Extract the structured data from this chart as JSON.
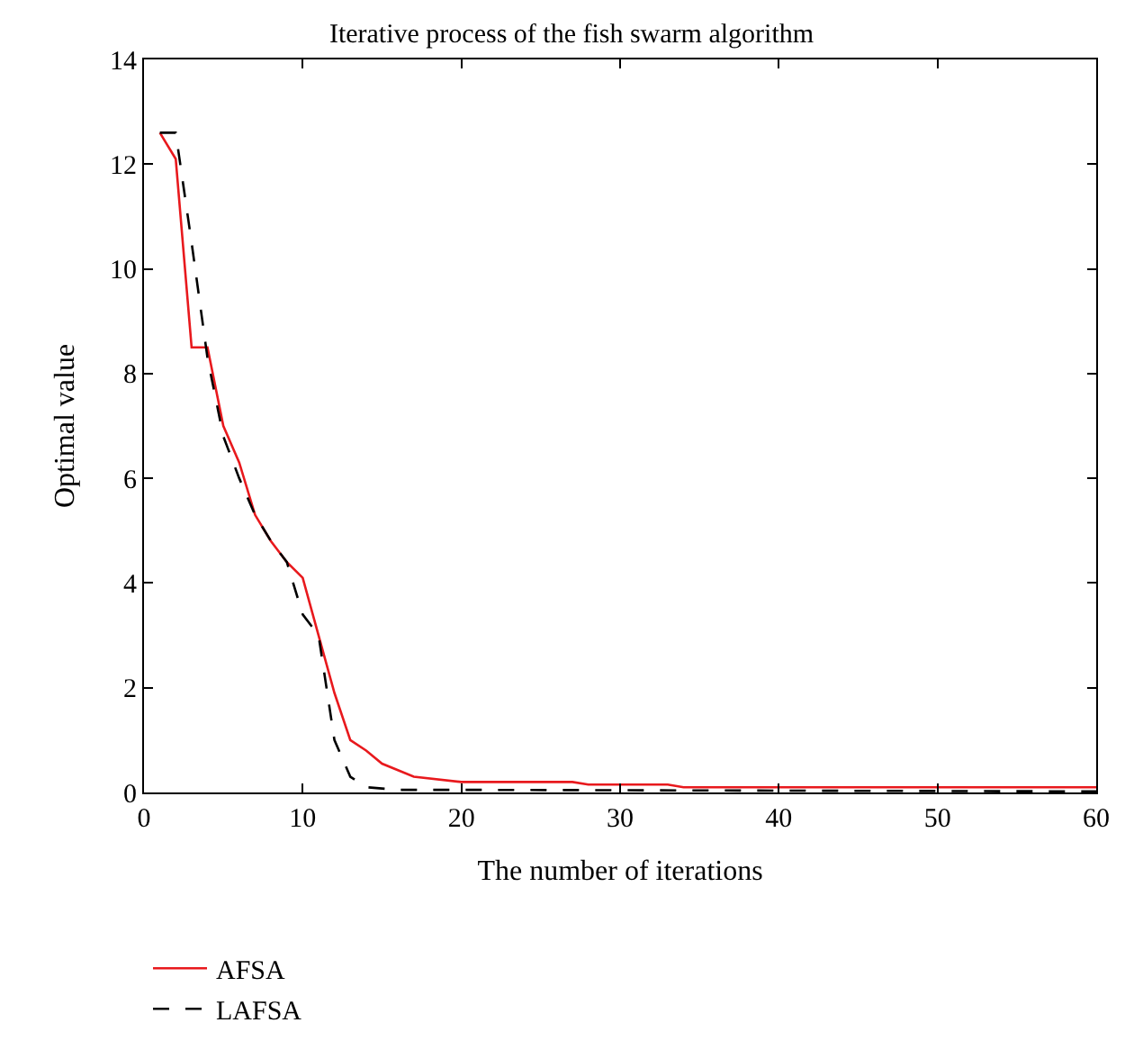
{
  "chart_data": {
    "type": "line",
    "title": "Iterative process of the fish swarm algorithm",
    "xlabel": "The number of iterations",
    "ylabel": "Optimal value",
    "xlim": [
      0,
      60
    ],
    "xticks": [
      0,
      10,
      20,
      30,
      40,
      50,
      60
    ],
    "ylim": [
      0,
      14
    ],
    "yticks": [
      0,
      2,
      4,
      6,
      8,
      10,
      12,
      14
    ],
    "legend": "bottom left",
    "marker": "none",
    "series": [
      {
        "name": "AFSA",
        "color": "#e8191d",
        "line_style": "solid",
        "x": [
          1,
          2,
          3,
          4,
          5,
          6,
          7,
          8,
          9,
          10,
          11,
          12,
          13,
          14,
          15,
          17,
          20,
          27,
          28,
          33,
          34,
          60
        ],
        "values": [
          12.6,
          12.1,
          8.5,
          8.5,
          7.0,
          6.3,
          5.3,
          4.8,
          4.4,
          4.1,
          3.0,
          1.9,
          1.0,
          0.8,
          0.55,
          0.3,
          0.2,
          0.2,
          0.15,
          0.15,
          0.1,
          0.1
        ]
      },
      {
        "name": "LAFSA",
        "color": "#000000",
        "line_style": "dashed",
        "x": [
          1,
          2,
          3,
          4,
          5,
          6,
          7,
          8,
          9,
          10,
          11,
          12,
          13,
          14,
          16,
          20,
          60
        ],
        "values": [
          12.6,
          12.6,
          10.5,
          8.3,
          6.8,
          6.0,
          5.3,
          4.8,
          4.4,
          3.4,
          3.0,
          1.0,
          0.3,
          0.1,
          0.05,
          0.05,
          0.02
        ]
      }
    ]
  }
}
